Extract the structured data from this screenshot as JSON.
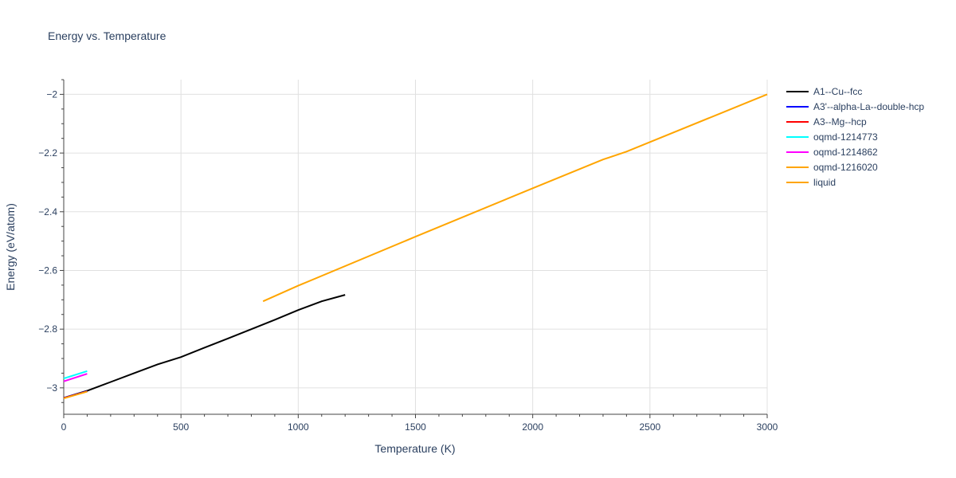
{
  "chart_data": {
    "type": "line",
    "title": "Energy vs. Temperature",
    "xlabel": "Temperature (K)",
    "ylabel": "Energy (eV/atom)",
    "xlim": [
      0,
      3000
    ],
    "ylim": [
      -3.09,
      -1.95
    ],
    "x_ticks": [
      0,
      500,
      1000,
      1500,
      2000,
      2500,
      3000
    ],
    "x_tick_labels": [
      "0",
      "500",
      "1000",
      "1500",
      "2000",
      "2500",
      "3000"
    ],
    "y_ticks": [
      -3.0,
      -2.8,
      -2.6,
      -2.4,
      -2.2,
      -2.0
    ],
    "y_tick_labels": [
      "−3",
      "−2.8",
      "−2.6",
      "−2.4",
      "−2.2",
      "−2"
    ],
    "grid": true,
    "legend_position": "right",
    "series": [
      {
        "name": "A1--Cu--fcc",
        "color": "#000000",
        "x": [
          0,
          100,
          200,
          300,
          400,
          500,
          600,
          700,
          800,
          900,
          1000,
          1100,
          1200
        ],
        "y": [
          -3.034,
          -3.01,
          -2.98,
          -2.95,
          -2.92,
          -2.895,
          -2.863,
          -2.832,
          -2.8,
          -2.768,
          -2.735,
          -2.705,
          -2.683
        ]
      },
      {
        "name": "A3'--alpha-La--double-hcp",
        "color": "#0000ff",
        "x": [
          0,
          100
        ],
        "y": [
          -3.034,
          -3.011
        ]
      },
      {
        "name": "A3--Mg--hcp",
        "color": "#ff0000",
        "x": [
          0,
          100
        ],
        "y": [
          -3.035,
          -3.012
        ]
      },
      {
        "name": "oqmd-1214773",
        "color": "#00ffff",
        "x": [
          0,
          100
        ],
        "y": [
          -2.968,
          -2.943
        ]
      },
      {
        "name": "oqmd-1214862",
        "color": "#ff00ff",
        "x": [
          0,
          100
        ],
        "y": [
          -2.978,
          -2.952
        ]
      },
      {
        "name": "oqmd-1216020",
        "color": "#ffa500",
        "x": [
          0,
          100
        ],
        "y": [
          -3.036,
          -3.013
        ]
      },
      {
        "name": "liquid",
        "color": "#ffa500",
        "x": [
          850,
          1000,
          1500,
          2000,
          2300,
          2400,
          2800,
          3000
        ],
        "y": [
          -2.705,
          -2.652,
          -2.485,
          -2.32,
          -2.222,
          -2.195,
          -2.065,
          -2.0
        ]
      }
    ]
  }
}
